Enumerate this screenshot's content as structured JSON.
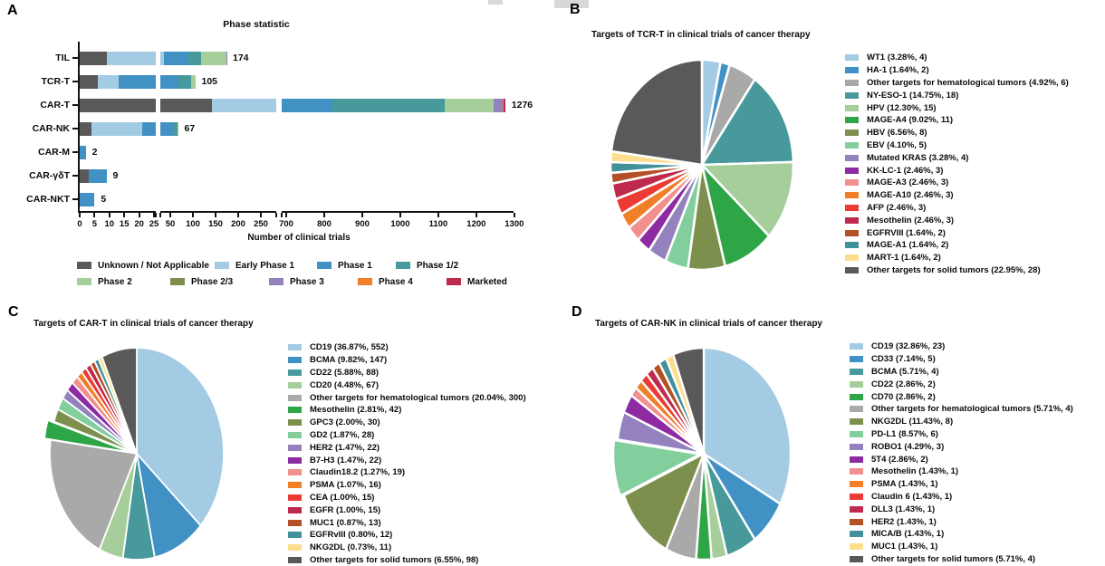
{
  "letters": {
    "A": "A",
    "B": "B",
    "C": "C",
    "D": "D"
  },
  "palette": {
    "lightBlue": "#A3CBE4",
    "blue": "#4191C5",
    "gray": "#A9A9A9",
    "teal": "#47999C",
    "lightGreen": "#A5CE9B",
    "green": "#2EA546",
    "olive": "#7C8F4D",
    "mint": "#82CE9C",
    "lavender": "#9482BF",
    "magenta": "#8E2BA2",
    "salmon": "#F2908D",
    "orange": "#F07F28",
    "red": "#EC3A34",
    "crimson": "#BE2A4C",
    "rust": "#B35025",
    "tealDark": "#42909A",
    "paleYellow": "#FBDF8E",
    "darkGray": "#595959"
  },
  "chart_data": [
    {
      "type": "bar",
      "panel": "A",
      "title": "Phase statistic",
      "xlabel": "Number of clinical trials",
      "orientation": "horizontal",
      "stacked": true,
      "grid": false,
      "categories": [
        "TIL",
        "TCR-T",
        "CAR-T",
        "CAR-NK",
        "CAR-M",
        "CAR-γδT",
        "CAR-NKT"
      ],
      "totals": [
        174,
        105,
        1276,
        67,
        2,
        9,
        5
      ],
      "x_segments": [
        {
          "range": [
            0,
            25.6
          ],
          "ticks": [
            0,
            5,
            10,
            15,
            20,
            25
          ]
        },
        {
          "range": [
            28,
            284
          ],
          "ticks": [
            50,
            100,
            150,
            200,
            250
          ]
        },
        {
          "range": [
            688,
            1298
          ],
          "ticks": [
            700,
            800,
            900,
            1000,
            1100,
            1200,
            1300
          ]
        }
      ],
      "values_note": "per-phase values estimated from segment widths; rows sum to totals",
      "series": [
        {
          "name": "Unknown / Not Applicable",
          "color": "darkGray",
          "values": [
            9,
            6,
            142,
            4,
            0,
            3,
            0
          ]
        },
        {
          "name": "Early Phase 1",
          "color": "lightBlue",
          "values": [
            26,
            7,
            458,
            17,
            0,
            0,
            0
          ]
        },
        {
          "name": "Phase 1",
          "color": "blue",
          "values": [
            54,
            55,
            221,
            34,
            2,
            6,
            5
          ]
        },
        {
          "name": "Phase 1/2",
          "color": "teal",
          "values": [
            29,
            27,
            296,
            10,
            0,
            0,
            0
          ]
        },
        {
          "name": "Phase 2",
          "color": "lightGreen",
          "values": [
            55,
            10,
            128,
            2,
            0,
            0,
            0
          ]
        },
        {
          "name": "Phase 2/3",
          "color": "olive",
          "values": [
            0,
            0,
            0,
            0,
            0,
            0,
            0
          ]
        },
        {
          "name": "Phase 3",
          "color": "lavender",
          "values": [
            1,
            0,
            24,
            0,
            0,
            0,
            0
          ]
        },
        {
          "name": "Phase 4",
          "color": "orange",
          "values": [
            0,
            0,
            2,
            0,
            0,
            0,
            0
          ]
        },
        {
          "name": "Marketed",
          "color": "crimson",
          "values": [
            0,
            0,
            5,
            0,
            0,
            0,
            0
          ]
        }
      ]
    },
    {
      "type": "pie",
      "panel": "B",
      "title": "Targets of TCR-T in clinical trials of cancer therapy",
      "legend_position": "right",
      "slices": [
        {
          "label": "WT1",
          "pct": "3.28",
          "count": 4,
          "color": "lightBlue"
        },
        {
          "label": "HA-1",
          "pct": "1.64",
          "count": 2,
          "color": "blue"
        },
        {
          "label": "Other targets for hematological tumors",
          "pct": "4.92",
          "count": 6,
          "color": "gray"
        },
        {
          "label": "NY-ESO-1",
          "pct": "14.75",
          "count": 18,
          "color": "teal"
        },
        {
          "label": "HPV",
          "pct": "12.30",
          "count": 15,
          "color": "lightGreen"
        },
        {
          "label": "MAGE-A4",
          "pct": "9.02",
          "count": 11,
          "color": "green"
        },
        {
          "label": "HBV",
          "pct": "6.56",
          "count": 8,
          "color": "olive"
        },
        {
          "label": "EBV",
          "pct": "4.10",
          "count": 5,
          "color": "mint"
        },
        {
          "label": "Mutated KRAS",
          "pct": "3.28",
          "count": 4,
          "color": "lavender"
        },
        {
          "label": "KK-LC-1",
          "pct": "2.46",
          "count": 3,
          "color": "magenta"
        },
        {
          "label": "MAGE-A3",
          "pct": "2.46",
          "count": 3,
          "color": "salmon"
        },
        {
          "label": "MAGE-A10",
          "pct": "2.46",
          "count": 3,
          "color": "orange"
        },
        {
          "label": "AFP",
          "pct": "2.46",
          "count": 3,
          "color": "red"
        },
        {
          "label": "Mesothelin",
          "pct": "2.46",
          "count": 3,
          "color": "crimson"
        },
        {
          "label": "EGFRVIII",
          "pct": "1.64",
          "count": 2,
          "color": "rust"
        },
        {
          "label": "MAGE-A1",
          "pct": "1.64",
          "count": 2,
          "color": "tealDark"
        },
        {
          "label": "MART-1",
          "pct": "1.64",
          "count": 2,
          "color": "paleYellow"
        },
        {
          "label": "Other targets for solid tumors",
          "pct": "22.95",
          "count": 28,
          "color": "darkGray"
        }
      ]
    },
    {
      "type": "pie",
      "panel": "C",
      "title": "Targets of CAR-T in clinical trials of cancer therapy",
      "legend_position": "right",
      "slices": [
        {
          "label": "CD19",
          "pct": "36.87",
          "count": 552,
          "color": "lightBlue"
        },
        {
          "label": "BCMA",
          "pct": "9.82",
          "count": 147,
          "color": "blue"
        },
        {
          "label": "CD22",
          "pct": "5.88",
          "count": 88,
          "color": "teal"
        },
        {
          "label": "CD20",
          "pct": "4.48",
          "count": 67,
          "color": "lightGreen"
        },
        {
          "label": "Other targets for hematological tumors",
          "pct": "20.04",
          "count": 300,
          "color": "gray"
        },
        {
          "label": "Mesothelin",
          "pct": "2.81",
          "count": 42,
          "color": "green",
          "exploded": true
        },
        {
          "label": "GPC3",
          "pct": "2.00",
          "count": 30,
          "color": "olive"
        },
        {
          "label": "GD2",
          "pct": "1.87",
          "count": 28,
          "color": "mint"
        },
        {
          "label": "HER2",
          "pct": "1.47",
          "count": 22,
          "color": "lavender"
        },
        {
          "label": "B7-H3",
          "pct": "1.47",
          "count": 22,
          "color": "magenta"
        },
        {
          "label": "Claudin18.2",
          "pct": "1.27",
          "count": 19,
          "color": "salmon"
        },
        {
          "label": "PSMA",
          "pct": "1.07",
          "count": 16,
          "color": "orange"
        },
        {
          "label": "CEA",
          "pct": "1.00",
          "count": 15,
          "color": "red"
        },
        {
          "label": "EGFR",
          "pct": "1.00",
          "count": 15,
          "color": "crimson"
        },
        {
          "label": "MUC1",
          "pct": "0.87",
          "count": 13,
          "color": "rust"
        },
        {
          "label": "EGFRvIII",
          "pct": "0.80",
          "count": 12,
          "color": "tealDark"
        },
        {
          "label": "NKG2DL",
          "pct": "0.73",
          "count": 11,
          "color": "paleYellow"
        },
        {
          "label": "Other targets for solid tumors",
          "pct": "6.55",
          "count": 98,
          "color": "darkGray"
        }
      ]
    },
    {
      "type": "pie",
      "panel": "D",
      "title": "Targets of CAR-NK in clinical trials of cancer therapy",
      "legend_position": "right",
      "slices": [
        {
          "label": "CD19",
          "pct": "32.86",
          "count": 23,
          "color": "lightBlue"
        },
        {
          "label": "CD33",
          "pct": "7.14",
          "count": 5,
          "color": "blue"
        },
        {
          "label": "BCMA",
          "pct": "5.71",
          "count": 4,
          "color": "teal"
        },
        {
          "label": "CD22",
          "pct": "2.86",
          "count": 2,
          "color": "lightGreen"
        },
        {
          "label": "CD70",
          "pct": "2.86",
          "count": 2,
          "color": "green"
        },
        {
          "label": "Other targets for hematological tumors",
          "pct": "5.71",
          "count": 4,
          "color": "gray"
        },
        {
          "label": "NKG2DL",
          "pct": "11.43",
          "count": 8,
          "color": "olive"
        },
        {
          "label": "PD-L1",
          "pct": "8.57",
          "count": 6,
          "color": "mint",
          "exploded": true
        },
        {
          "label": "ROBO1",
          "pct": "4.29",
          "count": 3,
          "color": "lavender"
        },
        {
          "label": "5T4",
          "pct": "2.86",
          "count": 2,
          "color": "magenta"
        },
        {
          "label": "Mesothelin",
          "pct": "1.43",
          "count": 1,
          "color": "salmon"
        },
        {
          "label": "PSMA",
          "pct": "1.43",
          "count": 1,
          "color": "orange"
        },
        {
          "label": "Claudin 6",
          "pct": "1.43",
          "count": 1,
          "color": "red"
        },
        {
          "label": "DLL3",
          "pct": "1.43",
          "count": 1,
          "color": "crimson"
        },
        {
          "label": "HER2",
          "pct": "1.43",
          "count": 1,
          "color": "rust"
        },
        {
          "label": "MICA/B",
          "pct": "1.43",
          "count": 1,
          "color": "tealDark"
        },
        {
          "label": "MUC1",
          "pct": "1.43",
          "count": 1,
          "color": "paleYellow"
        },
        {
          "label": "Other targets for solid tumors",
          "pct": "5.71",
          "count": 4,
          "color": "darkGray"
        }
      ]
    }
  ]
}
